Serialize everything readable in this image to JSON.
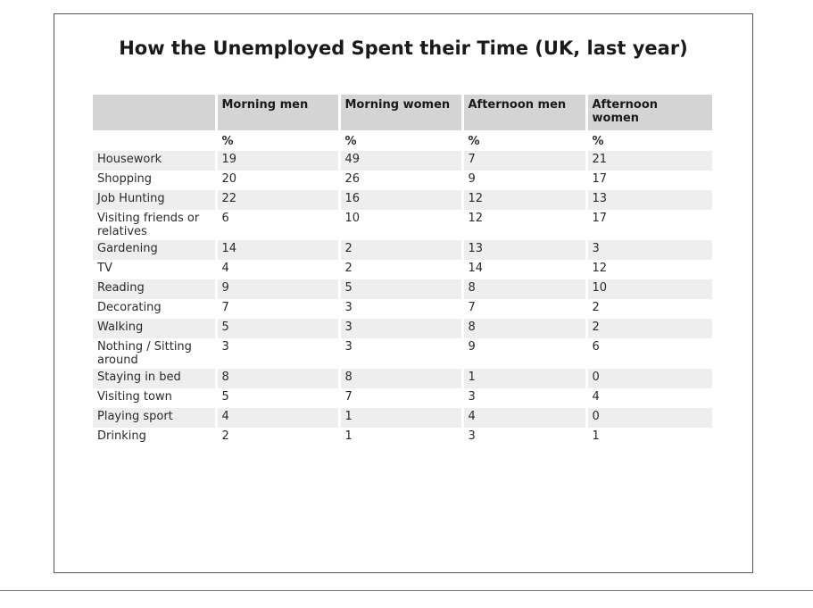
{
  "chart_data": {
    "type": "table",
    "title": "How the Unemployed Spent their Time (UK, last year)",
    "columns": [
      "",
      "Morning men",
      "Morning women",
      "Afternoon men",
      "Afternoon women"
    ],
    "units": [
      "",
      "%",
      "%",
      "%",
      "%"
    ],
    "rows": [
      [
        "Housework",
        "19",
        "49",
        "7",
        "21"
      ],
      [
        "Shopping",
        "20",
        "26",
        "9",
        "17"
      ],
      [
        "Job Hunting",
        "22",
        "16",
        "12",
        "13"
      ],
      [
        "Visiting friends or relatives",
        "6",
        "10",
        "12",
        "17"
      ],
      [
        "Gardening",
        "14",
        "2",
        "13",
        "3"
      ],
      [
        "TV",
        "4",
        "2",
        "14",
        "12"
      ],
      [
        "Reading",
        "9",
        "5",
        "8",
        "10"
      ],
      [
        "Decorating",
        "7",
        "3",
        "7",
        "2"
      ],
      [
        "Walking",
        "5",
        "3",
        "8",
        "2"
      ],
      [
        "Nothing / Sitting around",
        "3",
        "3",
        "9",
        "6"
      ],
      [
        "Staying in bed",
        "8",
        "8",
        "1",
        "0"
      ],
      [
        "Visiting town",
        "5",
        "7",
        "3",
        "4"
      ],
      [
        "Playing sport",
        "4",
        "1",
        "4",
        "0"
      ],
      [
        "Drinking",
        "2",
        "1",
        "3",
        "1"
      ]
    ],
    "header_bg": "#d4d4d4",
    "stripe_bg": "#eeeeee"
  }
}
